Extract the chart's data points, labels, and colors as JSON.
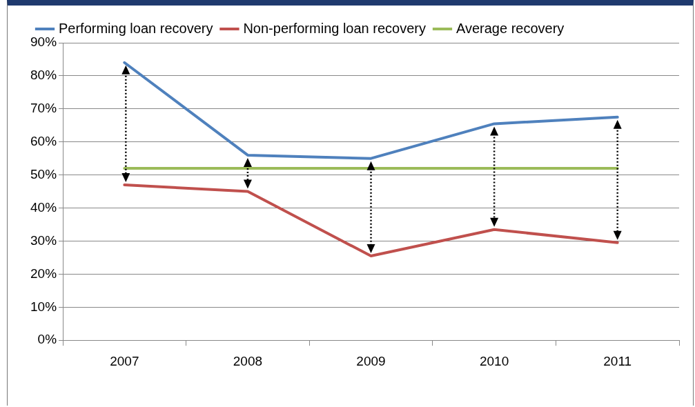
{
  "chart_data": {
    "type": "line",
    "categories": [
      "2007",
      "2008",
      "2009",
      "2010",
      "2011"
    ],
    "series": [
      {
        "name": "Performing loan recovery",
        "color": "#4f81bd",
        "values": [
          84,
          56,
          55,
          65.5,
          67.5
        ]
      },
      {
        "name": "Non-performing loan recovery",
        "color": "#c0504d",
        "values": [
          47,
          45,
          25.5,
          33.5,
          29.5
        ]
      },
      {
        "name": "Average recovery",
        "color": "#9bbb59",
        "values": [
          52,
          52,
          52,
          52,
          52
        ]
      }
    ],
    "ylim": [
      0,
      90
    ],
    "yticks": [
      {
        "value": 0,
        "label": "0%"
      },
      {
        "value": 10,
        "label": "10%"
      },
      {
        "value": 20,
        "label": "20%"
      },
      {
        "value": 30,
        "label": "30%"
      },
      {
        "value": 40,
        "label": "40%"
      },
      {
        "value": 50,
        "label": "50%"
      },
      {
        "value": 60,
        "label": "60%"
      },
      {
        "value": 70,
        "label": "70%"
      },
      {
        "value": 80,
        "label": "80%"
      },
      {
        "value": 90,
        "label": "90%"
      }
    ],
    "grid": "y",
    "legend": "top",
    "marker": "none",
    "line_style": "solid"
  }
}
